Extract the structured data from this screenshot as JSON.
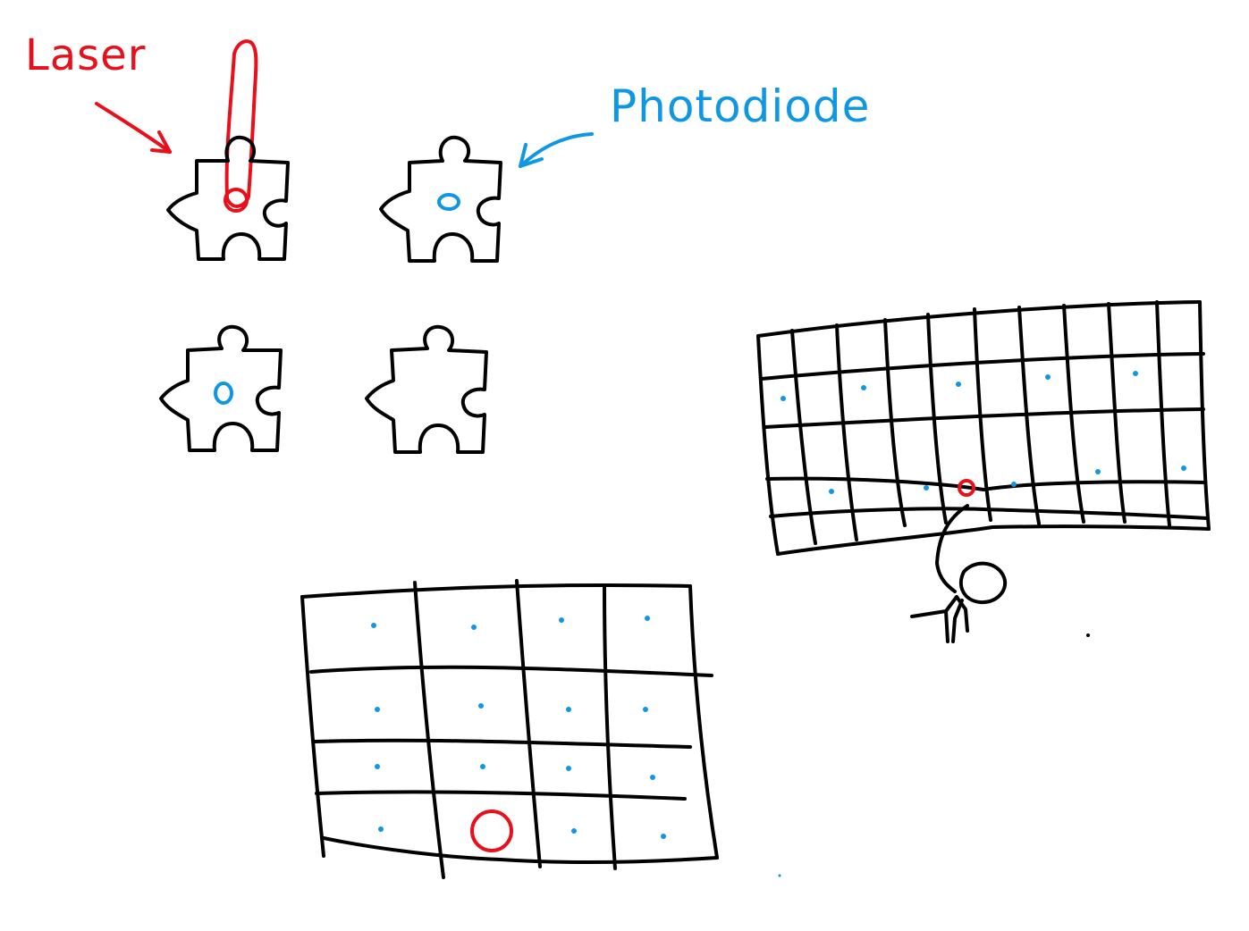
{
  "labels": {
    "laser": "Laser",
    "photodiode": "Photodiode"
  },
  "colors": {
    "laser": "#e8101b",
    "photodiode": "#1097e3",
    "ink": "#000000"
  },
  "puzzle_pieces": [
    {
      "id": "top-left",
      "has_laser_spot": true,
      "has_photodiode": false
    },
    {
      "id": "top-right",
      "has_laser_spot": false,
      "has_photodiode": true
    },
    {
      "id": "bottom-left",
      "has_laser_spot": false,
      "has_photodiode": true
    },
    {
      "id": "bottom-right",
      "has_laser_spot": false,
      "has_photodiode": false
    }
  ],
  "small_grid": {
    "rows": 4,
    "cols": 4,
    "laser_cell": [
      3,
      1
    ]
  },
  "large_grid": {
    "rows": 5,
    "cols": 10,
    "laser_cell": [
      3,
      4
    ]
  }
}
